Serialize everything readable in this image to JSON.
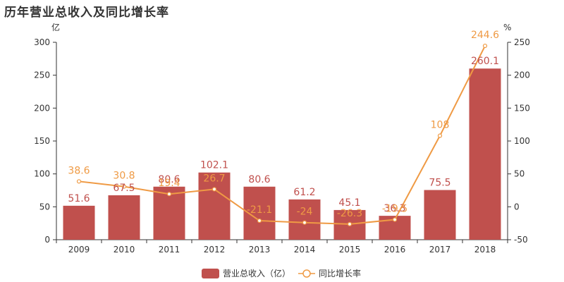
{
  "chart_data": {
    "type": "bar",
    "title": "历年营业总收入及同比增长率",
    "categories": [
      "2009",
      "2010",
      "2011",
      "2012",
      "2013",
      "2014",
      "2015",
      "2016",
      "2017",
      "2018"
    ],
    "series": [
      {
        "name": "营业总收入（亿）",
        "type": "bar",
        "axis": "left",
        "values": [
          51.6,
          67.5,
          80.6,
          102.1,
          80.6,
          61.2,
          45.1,
          36.3,
          75.5,
          260.1
        ],
        "labels": [
          "51.6",
          "67.5",
          "80.6",
          "102.1",
          "80.6",
          "61.2",
          "45.1",
          "36.3",
          "75.5",
          "260.1"
        ],
        "color": "#c0504d"
      },
      {
        "name": "同比增长率",
        "type": "line",
        "axis": "right",
        "values": [
          38.6,
          30.8,
          19.4,
          26.7,
          -21.1,
          -24,
          -26.3,
          -19.5,
          108,
          244.6
        ],
        "labels": [
          "38.6",
          "30.8",
          "19.4",
          "26.7",
          "-21.1",
          "-24",
          "-26.3",
          "-19.5",
          "108",
          "244.6"
        ],
        "color": "#ef9a44"
      }
    ],
    "y_left": {
      "unit": "亿",
      "min": 0,
      "max": 300,
      "ticks": [
        0,
        50,
        100,
        150,
        200,
        250,
        300
      ]
    },
    "y_right": {
      "unit": "%",
      "min": -50,
      "max": 250,
      "ticks": [
        -50,
        0,
        50,
        100,
        150,
        200,
        250
      ]
    },
    "grid": false,
    "legend_position": "bottom-center"
  }
}
